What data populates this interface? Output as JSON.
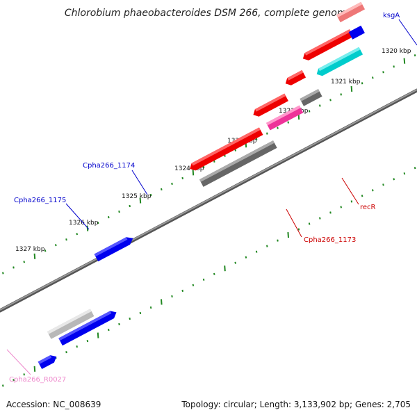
{
  "title": "Chlorobium phaeobacteroides DSM 266, complete genome",
  "footer": {
    "accession": "Accession: NC_008639",
    "stats": "Topology: circular; Length: 3,133,902 bp; Genes: 2,705"
  },
  "ticks": [
    {
      "label": "1320 kbp"
    },
    {
      "label": "1321 kbp"
    },
    {
      "label": "1322 kbp"
    },
    {
      "label": "1323 kbp"
    },
    {
      "label": "1324 kbp"
    },
    {
      "label": "1325 kbp"
    },
    {
      "label": "1326 kbp"
    },
    {
      "label": "1327 kbp"
    }
  ],
  "gene_labels": [
    {
      "text": "ksgA",
      "color": "#0000cc"
    },
    {
      "text": "Cpha266_1174",
      "color": "#0000cc"
    },
    {
      "text": "Cpha266_1175",
      "color": "#0000cc"
    },
    {
      "text": "recR",
      "color": "#cc0000"
    },
    {
      "text": "Cpha266_1173",
      "color": "#cc0000"
    },
    {
      "text": "Cpha266_R0027",
      "color": "#ee88cc"
    }
  ],
  "colors": {
    "blue_gene": "#0000ee",
    "red_gene": "#ee0000",
    "grey_gene": "#666666",
    "light_grey_gene": "#bbbbbb",
    "pink_gene": "#ee3399",
    "cyan_gene": "#00cccc",
    "salmon_gene": "#ee7777",
    "tick_green": "#228822",
    "backbone": "#808080"
  }
}
